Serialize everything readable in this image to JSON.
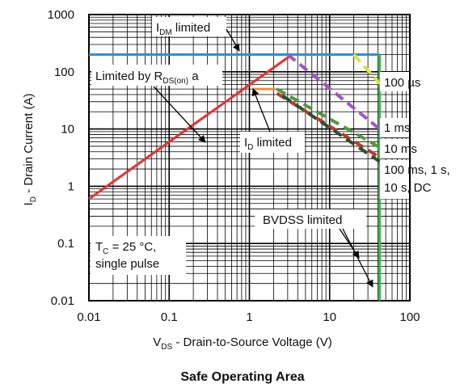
{
  "chart_data": {
    "type": "line",
    "title": "",
    "caption": "Safe Operating Area",
    "xscale": "log",
    "yscale": "log",
    "xlim": [
      0.01,
      100
    ],
    "ylim": [
      0.01,
      1000
    ],
    "grid": true,
    "x_ticks": [
      "0.01",
      "0.1",
      "1",
      "10",
      "100"
    ],
    "y_ticks": [
      "0.01",
      "0.1",
      "1",
      "10",
      "100",
      "1000"
    ],
    "xlabel": {
      "main": "V",
      "sub": "DS",
      "rest": " - Drain-to-Source Voltage (V)"
    },
    "ylabel": {
      "main": "I",
      "sub": "D",
      "rest": " - Drain Current (A)"
    },
    "series": [
      {
        "color": "#e8312f",
        "style": "solid",
        "points": [
          [
            0.01,
            0.6
          ],
          [
            3.4,
            200
          ]
        ]
      },
      {
        "color": "#2d8fd5",
        "style": "solid",
        "points": [
          [
            0.01,
            200
          ],
          [
            42,
            200
          ]
        ]
      },
      {
        "color": "#f2912b",
        "style": "solid",
        "points": [
          [
            1.1,
            50
          ],
          [
            2.1,
            50
          ]
        ]
      },
      {
        "color": "#3cb54a",
        "style": "solid",
        "points": [
          [
            42,
            0.01
          ],
          [
            42,
            200
          ]
        ]
      },
      {
        "color": "#d7e64a",
        "style": "dashed",
        "points": [
          [
            20,
            200
          ],
          [
            42,
            62
          ]
        ]
      },
      {
        "color": "#a552c4",
        "style": "dashed",
        "points": [
          [
            3.0,
            200
          ],
          [
            42,
            10
          ]
        ]
      },
      {
        "color": "#4f9a3b",
        "style": "dashed",
        "points": [
          [
            2.2,
            50
          ],
          [
            42,
            4.8
          ]
        ]
      },
      {
        "color": "#c0392b",
        "style": "dashed",
        "points": [
          [
            2.2,
            42
          ],
          [
            42,
            3.2
          ]
        ]
      },
      {
        "color": "#2f4f2f",
        "style": "dashed",
        "points": [
          [
            2.6,
            38
          ],
          [
            42,
            2.7
          ]
        ]
      }
    ],
    "annotations": [
      {
        "main": "I",
        "sub": "DM",
        "rest": " limited"
      },
      {
        "main": "Limited by R",
        "sub": "DS(on)",
        "rest": " a"
      },
      {
        "main": "I",
        "sub": "D",
        "rest": " limited"
      },
      {
        "main": "100 µs",
        "sub": "",
        "rest": ""
      },
      {
        "main": "1 ms",
        "sub": "",
        "rest": ""
      },
      {
        "main": "10 ms",
        "sub": "",
        "rest": ""
      },
      {
        "main": "100 ms, 1 s,",
        "sub": "",
        "rest": ""
      },
      {
        "main": "10 s, DC",
        "sub": "",
        "rest": ""
      },
      {
        "main": "BVDSS limited",
        "sub": "",
        "rest": ""
      },
      {
        "main": "T",
        "sub": "C",
        "rest": " = 25 °C,"
      },
      {
        "main": "single pulse",
        "sub": "",
        "rest": ""
      }
    ]
  }
}
